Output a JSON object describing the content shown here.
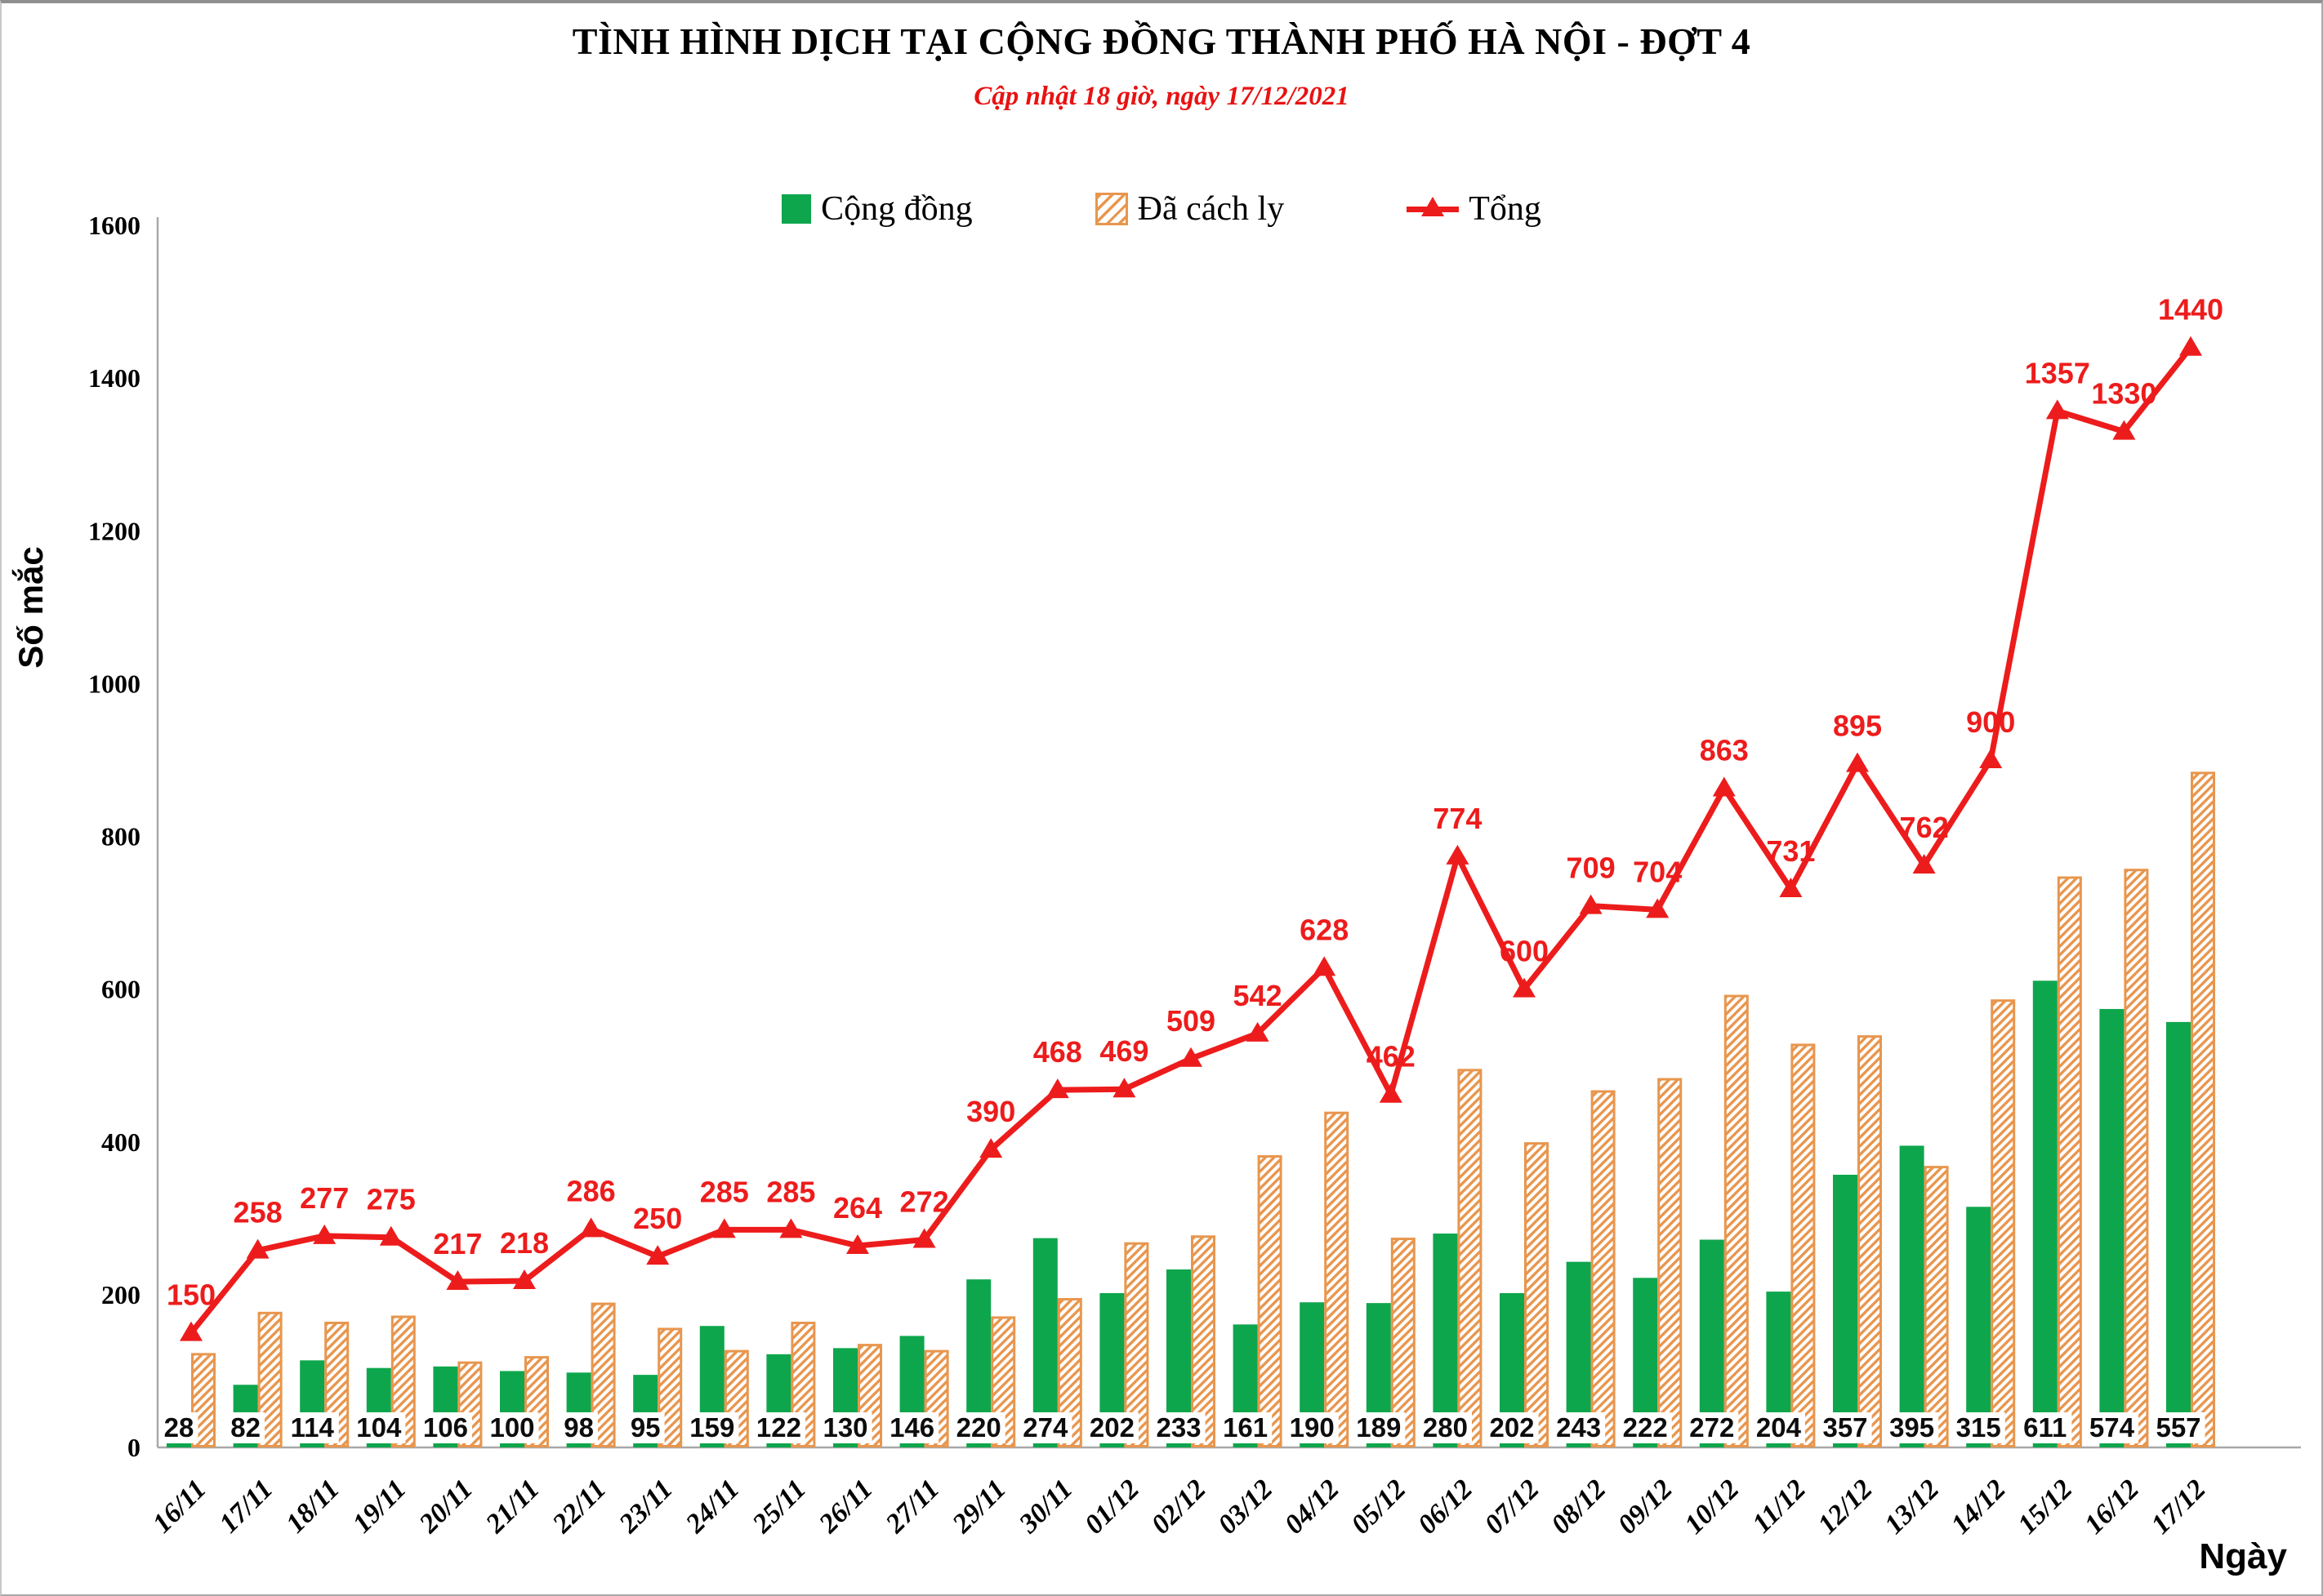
{
  "header": {
    "title": "TÌNH HÌNH DỊCH TẠI CỘNG ĐỒNG THÀNH PHỐ HÀ NỘI - ĐỢT 4",
    "subtitle": "Cập nhật 18 giờ, ngày 17/12/2021"
  },
  "colors": {
    "community_green": "#0ea64d",
    "quarantine_orange": "#e8964e",
    "total_red": "#ed1c1c",
    "axis_gray": "#a8a8a8",
    "subtitle_red": "#e81212"
  },
  "chart_data": {
    "type": "bar",
    "subtype": "bar-line-combo",
    "title": "TÌNH HÌNH DỊCH TẠI CỘNG ĐỒNG THÀNH PHỐ HÀ NỘI - ĐỢT 4",
    "subtitle": "Cập nhật 18 giờ, ngày 17/12/2021",
    "xlabel": "Ngày",
    "ylabel": "Số mắc",
    "ylim": [
      0,
      1600
    ],
    "y_ticks": [
      0,
      200,
      400,
      600,
      800,
      1000,
      1200,
      1400,
      1600
    ],
    "grid": false,
    "legend_position": "top",
    "categories": [
      "16/11",
      "17/11",
      "18/11",
      "19/11",
      "20/11",
      "21/11",
      "22/11",
      "23/11",
      "24/11",
      "25/11",
      "26/11",
      "27/11",
      "29/11",
      "30/11",
      "01/12",
      "02/12",
      "03/12",
      "04/12",
      "05/12",
      "06/12",
      "07/12",
      "08/12",
      "09/12",
      "10/12",
      "11/12",
      "12/12",
      "13/12",
      "14/12",
      "15/12",
      "16/12",
      "17/12"
    ],
    "series": [
      {
        "name": "Cộng đồng",
        "type": "bar",
        "style": "solid",
        "color": "#0ea64d",
        "labels_shown": true,
        "values": [
          28,
          82,
          114,
          104,
          106,
          100,
          98,
          95,
          159,
          122,
          130,
          146,
          220,
          274,
          202,
          233,
          161,
          190,
          189,
          280,
          202,
          243,
          222,
          272,
          204,
          357,
          395,
          315,
          611,
          574,
          557
        ]
      },
      {
        "name": "Đã cách ly",
        "type": "bar",
        "style": "hatched",
        "color": "#e8964e",
        "labels_shown": false,
        "values": [
          122,
          176,
          163,
          171,
          111,
          118,
          188,
          155,
          126,
          163,
          134,
          126,
          170,
          194,
          267,
          276,
          381,
          438,
          273,
          494,
          398,
          466,
          482,
          591,
          527,
          538,
          367,
          585,
          746,
          756,
          883
        ]
      },
      {
        "name": "Tổng",
        "type": "line",
        "marker": "triangle",
        "color": "#ed1c1c",
        "labels_shown": true,
        "values": [
          150,
          258,
          277,
          275,
          217,
          218,
          286,
          250,
          285,
          285,
          264,
          272,
          390,
          468,
          469,
          509,
          542,
          628,
          462,
          774,
          600,
          709,
          704,
          863,
          731,
          895,
          762,
          900,
          1357,
          1330,
          1440
        ]
      }
    ]
  }
}
